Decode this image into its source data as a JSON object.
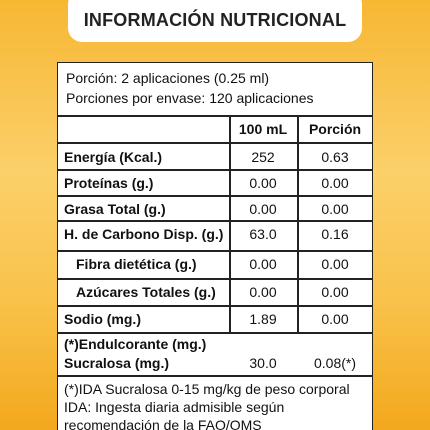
{
  "header": {
    "title": "INFORMACIÓN NUTRICIONAL"
  },
  "portion": [
    "Porción: 2 aplicaciones (0.25 ml)",
    "Porciones por envase: 120 aplicaciones"
  ],
  "table": {
    "columns": [
      "100 mL",
      "Porción"
    ],
    "rows": [
      [
        "Energía (Kcal.)",
        "252",
        "0.63"
      ],
      [
        "Proteínas (g.)",
        "0.00",
        "0.00"
      ],
      [
        "Grasa Total (g.)",
        "0.00",
        "0.00"
      ],
      [
        "H. de Carbono Disp. (g.)",
        "63.0",
        "0.16"
      ],
      [
        "Fibra dietética (g.)",
        "0.00",
        "0.00"
      ],
      [
        "Azúcares Totales (g.)",
        "0.00",
        "0.00"
      ],
      [
        "Sodio (mg.)",
        "1.89",
        "0.00"
      ]
    ]
  },
  "sweetener": {
    "heading": "(*)Endulcorante (mg.)",
    "label": "Sucralosa (mg.)",
    "values": [
      "30.0",
      "0.08(*)"
    ]
  },
  "footnote": [
    "(*)IDA Sucralosa 0-15 mg/kg de peso corporal",
    "IDA: Ingesta diaria admisible según",
    "recomendación de la FAO/OMS"
  ]
}
